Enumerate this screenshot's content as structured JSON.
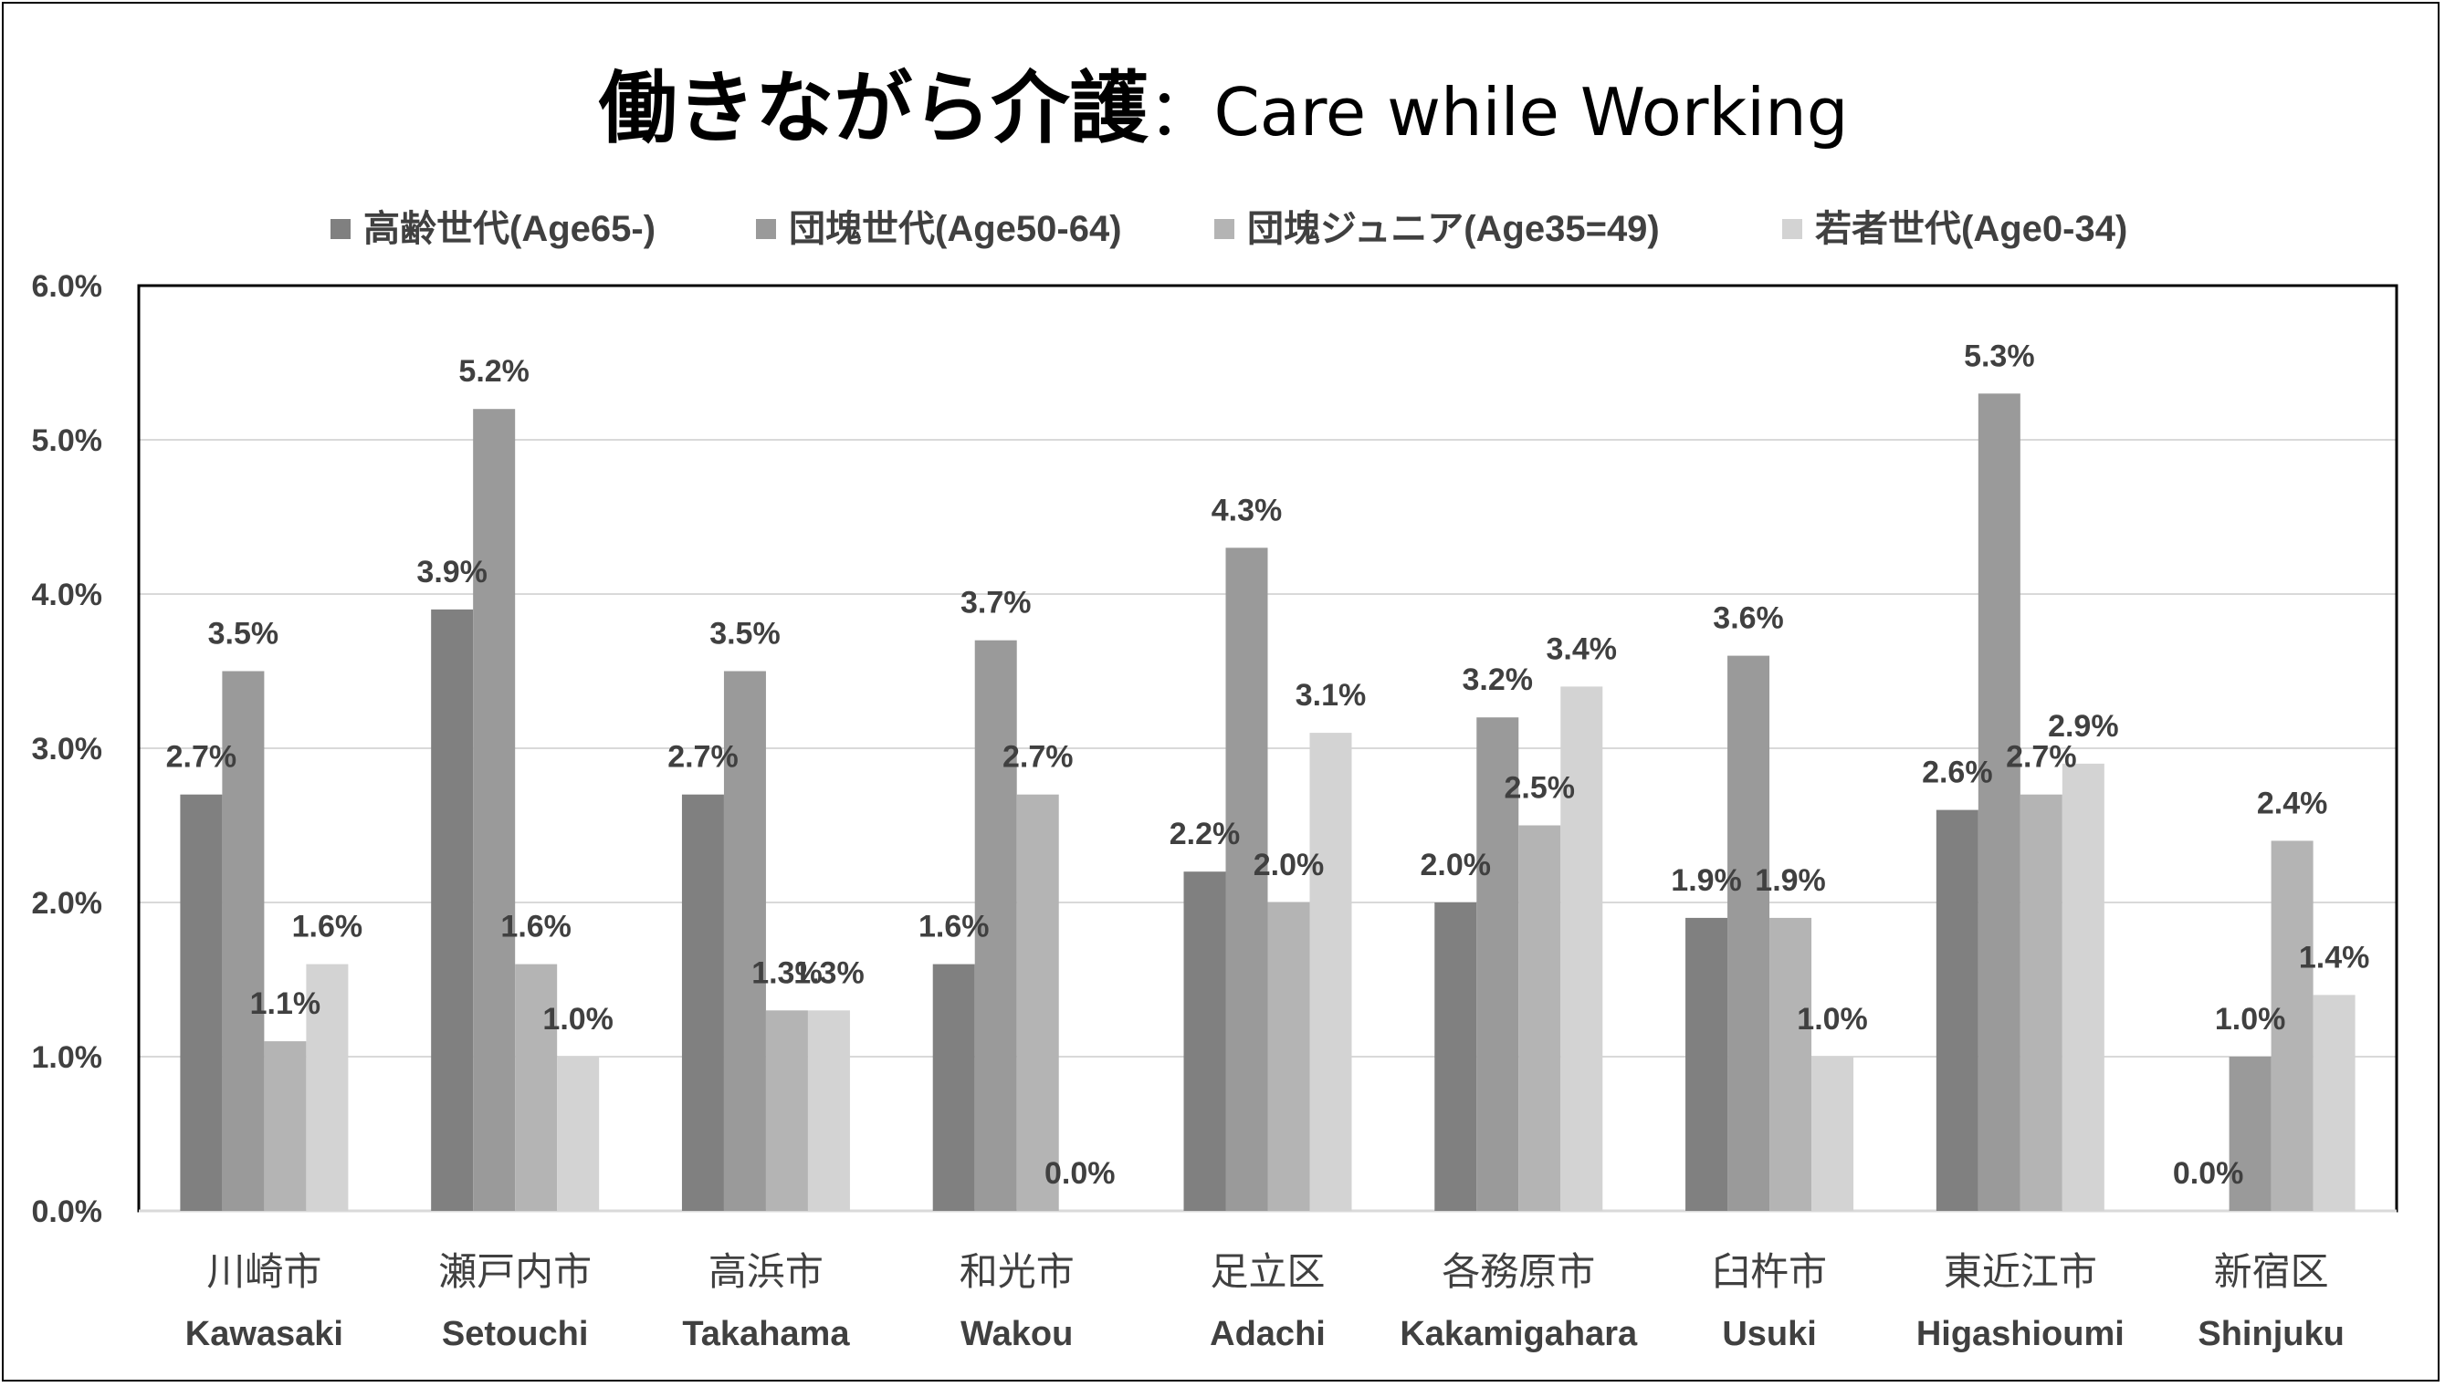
{
  "chart_data": {
    "type": "bar",
    "title_jp": "働きながら介護",
    "title_sep": "：",
    "title_en": "Care while Working",
    "categories": [
      {
        "jp": "川崎市",
        "en": "Kawasaki"
      },
      {
        "jp": "瀬戸内市",
        "en": "Setouchi"
      },
      {
        "jp": "高浜市",
        "en": "Takahama"
      },
      {
        "jp": "和光市",
        "en": "Wakou"
      },
      {
        "jp": "足立区",
        "en": "Adachi"
      },
      {
        "jp": "各務原市",
        "en": "Kakamigahara"
      },
      {
        "jp": "臼杵市",
        "en": "Usuki"
      },
      {
        "jp": "東近江市",
        "en": "Higashioumi"
      },
      {
        "jp": "新宿区",
        "en": "Shinjuku"
      }
    ],
    "series": [
      {
        "name": "高齢世代(Age65-)",
        "color": "#808080",
        "values": [
          2.7,
          3.9,
          2.7,
          1.6,
          2.2,
          2.0,
          1.9,
          2.6,
          0.0
        ]
      },
      {
        "name": "団塊世代(Age50-64)",
        "color": "#9a9a9a",
        "values": [
          3.5,
          5.2,
          3.5,
          3.7,
          4.3,
          3.2,
          3.6,
          5.3,
          1.0
        ]
      },
      {
        "name": "団塊ジュニア(Age35=49)",
        "color": "#b4b4b4",
        "values": [
          1.1,
          1.6,
          1.3,
          2.7,
          2.0,
          2.5,
          1.9,
          2.7,
          2.4
        ]
      },
      {
        "name": "若者世代(Age0-34)",
        "color": "#d3d3d3",
        "values": [
          1.6,
          1.0,
          1.3,
          0.0,
          3.1,
          3.4,
          1.0,
          2.9,
          1.4
        ]
      }
    ],
    "yticks": [
      "0.0%",
      "1.0%",
      "2.0%",
      "3.0%",
      "4.0%",
      "5.0%",
      "6.0%"
    ],
    "ylim": [
      0,
      6
    ],
    "unit_suffix": "%",
    "legend_position": "top",
    "grid": true
  }
}
